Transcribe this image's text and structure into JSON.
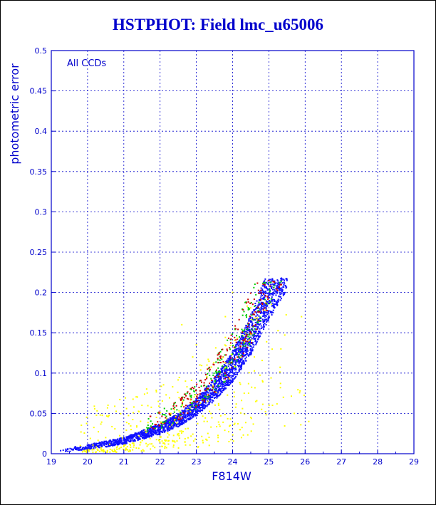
{
  "chart_data": {
    "type": "scatter",
    "title": "HSTPHOT: Field lmc_u65006",
    "xlabel": "F814W",
    "ylabel": "photometric error",
    "annotation": "All CCDs",
    "xlim": [
      19,
      29
    ],
    "ylim": [
      0,
      0.5
    ],
    "xticks": [
      "19",
      "20",
      "21",
      "22",
      "23",
      "24",
      "25",
      "26",
      "27",
      "28",
      "29"
    ],
    "yticks": [
      "0",
      "0.05",
      "0.1",
      "0.15",
      "0.2",
      "0.25",
      "0.3",
      "0.35",
      "0.4",
      "0.45",
      "0.5"
    ],
    "grid": "dashed",
    "colors": {
      "axis": "#0000cc",
      "grid": "#0000cc",
      "title": "#0000cc"
    },
    "series": [
      {
        "color": "#1010ff",
        "shape": "main-sequence-curve",
        "curve": [
          [
            19.2,
            0.002
          ],
          [
            20,
            0.006
          ],
          [
            21,
            0.013
          ],
          [
            22,
            0.026
          ],
          [
            22.5,
            0.036
          ],
          [
            23,
            0.05
          ],
          [
            23.5,
            0.07
          ],
          [
            24,
            0.095
          ],
          [
            24.5,
            0.13
          ],
          [
            25,
            0.175
          ],
          [
            25.3,
            0.2
          ],
          [
            25.5,
            0.215
          ]
        ]
      },
      {
        "color": "#00cc00",
        "shape": "scatter-above-curve"
      },
      {
        "color": "#cc0000",
        "shape": "scatter-above-curve"
      },
      {
        "color": "#ffff00",
        "shape": "outliers",
        "points": [
          [
            19.8,
            0.01
          ],
          [
            20.5,
            0.02
          ],
          [
            21.2,
            0.03
          ],
          [
            21.5,
            0.06
          ],
          [
            21.9,
            0.045
          ],
          [
            22.3,
            0.05
          ],
          [
            22.7,
            0.09
          ],
          [
            23.1,
            0.11
          ],
          [
            23.3,
            0.04
          ],
          [
            23.6,
            0.02
          ],
          [
            23.9,
            0.015
          ],
          [
            24.2,
            0.03
          ],
          [
            24.5,
            0.045
          ],
          [
            24.8,
            0.055
          ],
          [
            25.1,
            0.06
          ],
          [
            25.4,
            0.07
          ],
          [
            25.7,
            0.05
          ],
          [
            26.1,
            0.04
          ],
          [
            23.0,
            0.135
          ],
          [
            22.6,
            0.16
          ],
          [
            24.0,
            0.2
          ],
          [
            23.8,
            0.17
          ],
          [
            22.9,
            0.12
          ],
          [
            24.6,
            0.12
          ],
          [
            25.9,
            0.17
          ]
        ]
      }
    ]
  }
}
